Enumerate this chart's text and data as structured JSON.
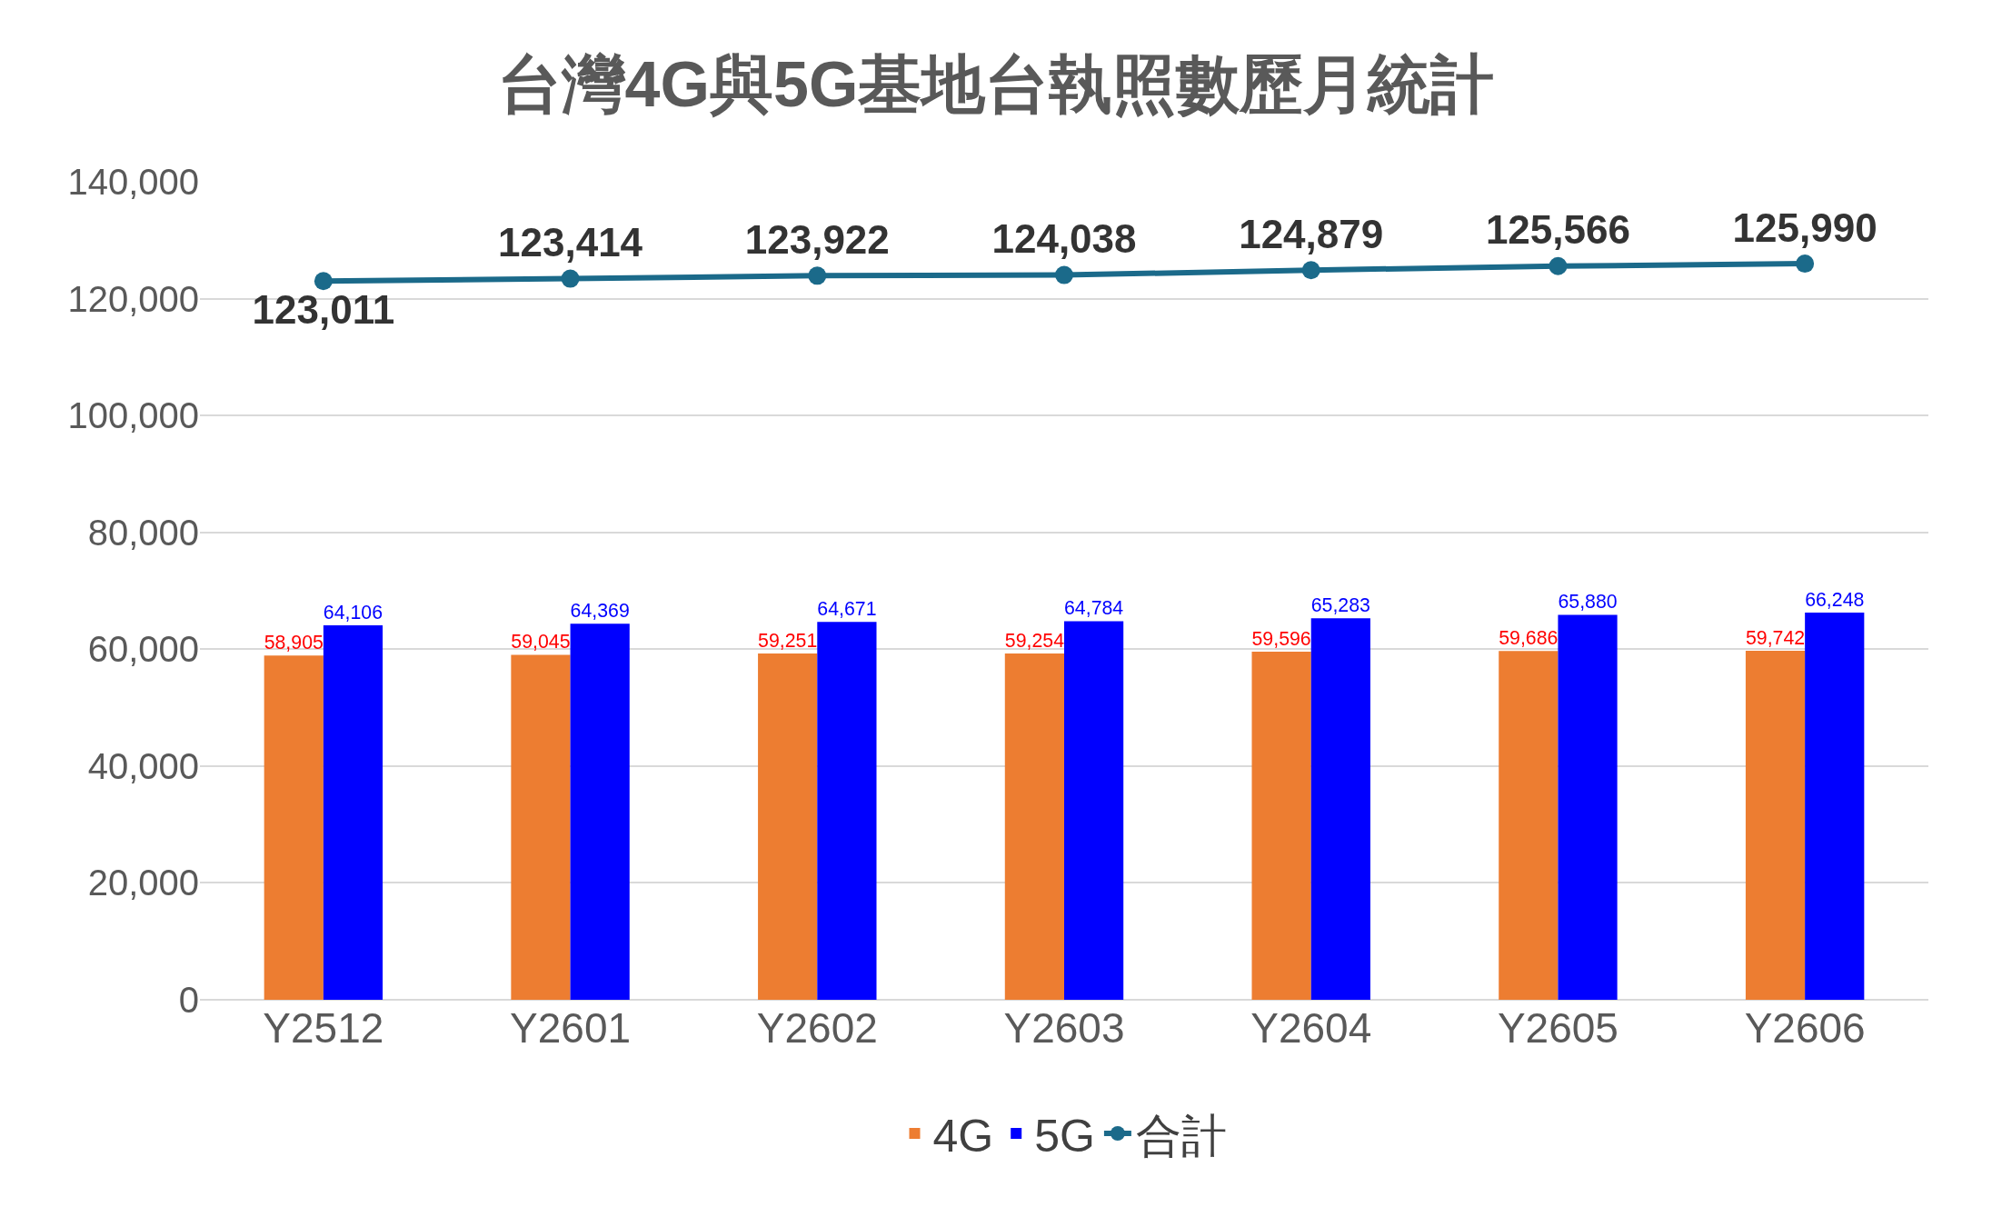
{
  "chart_data": {
    "type": "bar",
    "title": "台灣4G與5G基地台執照數歷月統計",
    "categories": [
      "Y2512",
      "Y2601",
      "Y2602",
      "Y2603",
      "Y2604",
      "Y2605",
      "Y2606"
    ],
    "series": [
      {
        "name": "4G",
        "color": "#ed7d31",
        "values": [
          58905,
          59045,
          59251,
          59254,
          59596,
          59686,
          59742
        ],
        "value_labels": [
          "58,905",
          "59,045",
          "59,251",
          "59,254",
          "59,596",
          "59,686",
          "59,742"
        ]
      },
      {
        "name": "5G",
        "color": "#0000ff",
        "values": [
          64106,
          64369,
          64671,
          64784,
          65283,
          65880,
          66248
        ],
        "value_labels": [
          "64,106",
          "64,369",
          "64,671",
          "64,784",
          "65,283",
          "65,880",
          "66,248"
        ]
      },
      {
        "name": "合計",
        "type": "line",
        "color": "#1b6a8a",
        "values": [
          123011,
          123414,
          123922,
          124038,
          124879,
          125566,
          125990
        ],
        "value_labels": [
          "123,011",
          "123,414",
          "123,922",
          "124,038",
          "124,879",
          "125,566",
          "125,990"
        ]
      }
    ],
    "ylim": [
      0,
      140000
    ],
    "yticks": [
      {
        "value": 0,
        "label": "0"
      },
      {
        "value": 20000,
        "label": "20,000"
      },
      {
        "value": 40000,
        "label": "40,000"
      },
      {
        "value": 60000,
        "label": "60,000"
      },
      {
        "value": 80000,
        "label": "80,000"
      },
      {
        "value": 100000,
        "label": "100,000"
      },
      {
        "value": 120000,
        "label": "120,000"
      },
      {
        "value": 140000,
        "label": "140,000"
      }
    ],
    "grid": "y",
    "legend": "bottom",
    "marker": "circle"
  }
}
